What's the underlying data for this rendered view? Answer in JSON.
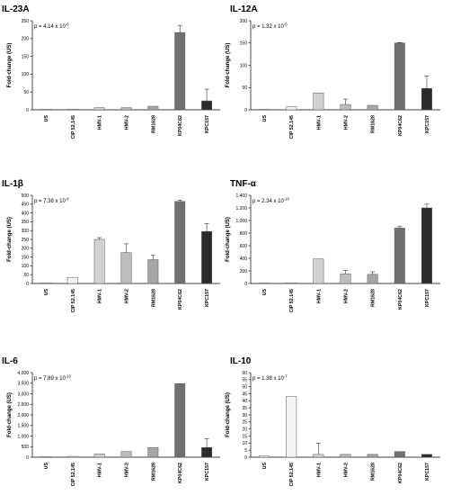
{
  "chart_data": [
    {
      "type": "bar",
      "title": "IL-23A",
      "annotation_base": "p = 4.14 x 10",
      "annotation_exp": "-6",
      "ylabel": "Fold-change (US)",
      "ylim": [
        0,
        250
      ],
      "yticks": [
        0,
        50,
        100,
        150,
        200,
        250
      ],
      "ytick_labels": [
        "0",
        "50",
        "100",
        "150",
        "200",
        "250"
      ],
      "categories": [
        "US",
        "CIP 52.145",
        "HMV-1",
        "HMV-2",
        "RM1628",
        "KP04C62",
        "KPC157"
      ],
      "values": [
        1,
        1,
        6,
        6,
        10,
        217,
        25
      ],
      "errors": [
        0,
        0,
        0,
        0,
        0,
        20,
        33
      ]
    },
    {
      "type": "bar",
      "title": "IL-12A",
      "annotation_base": "p = 1.32 x 10",
      "annotation_exp": "-6",
      "ylabel": "Fold-change (US)",
      "ylim": [
        0,
        200
      ],
      "yticks": [
        0,
        50,
        100,
        150,
        200
      ],
      "ytick_labels": [
        "0",
        "50",
        "100",
        "150",
        "200"
      ],
      "categories": [
        "US",
        "CIP 52.145",
        "HMV-1",
        "HMV-2",
        "RM1628",
        "KP04C62",
        "KPC157"
      ],
      "values": [
        1,
        7,
        38,
        12,
        10,
        150,
        48
      ],
      "errors": [
        0,
        0,
        0,
        12,
        0,
        1,
        28
      ]
    },
    {
      "type": "bar",
      "title": "IL-1β",
      "annotation_base": "p = 7.38 x 10",
      "annotation_exp": "-8",
      "ylabel": "Fold-change (US)",
      "ylim": [
        0,
        500
      ],
      "yticks": [
        0,
        50,
        100,
        150,
        200,
        250,
        300,
        350,
        400,
        450,
        500
      ],
      "ytick_labels": [
        "0",
        "50",
        "100",
        "150",
        "200",
        "250",
        "300",
        "350",
        "400",
        "450",
        "500"
      ],
      "categories": [
        "US",
        "CIP 52.145",
        "HMV-1",
        "HMV-2",
        "RM1628",
        "KP04C62",
        "KPC157"
      ],
      "values": [
        2,
        35,
        250,
        175,
        135,
        465,
        295
      ],
      "errors": [
        0,
        0,
        10,
        50,
        25,
        8,
        45
      ]
    },
    {
      "type": "bar",
      "title": "TNF-α",
      "annotation_base": "p = 2.34 x 10",
      "annotation_exp": "-10",
      "ylabel": "Fold-change (US)",
      "ylim": [
        0,
        1400
      ],
      "yticks": [
        0,
        200,
        400,
        600,
        800,
        1000,
        1200,
        1400
      ],
      "ytick_labels": [
        "0",
        "200",
        "400",
        "600",
        "800",
        "1,000",
        "1,200",
        "1,400"
      ],
      "categories": [
        "US",
        "CIP 52.145",
        "HMV-1",
        "HMV-2",
        "RM1628",
        "KP04C62",
        "KPC157"
      ],
      "values": [
        1,
        3,
        390,
        155,
        145,
        880,
        1200
      ],
      "errors": [
        0,
        0,
        0,
        50,
        40,
        25,
        60
      ]
    },
    {
      "type": "bar",
      "title": "IL-6",
      "annotation_base": "p = 7.89 x 10",
      "annotation_exp": "-10",
      "ylabel": "Fold-change (US)",
      "ylim": [
        0,
        4000
      ],
      "yticks": [
        0,
        500,
        1000,
        1500,
        2000,
        2500,
        3000,
        3500,
        4000
      ],
      "ytick_labels": [
        "0",
        "500",
        "1,000",
        "1,500",
        "2,000",
        "2,500",
        "3,000",
        "3,500",
        "4,000"
      ],
      "categories": [
        "US",
        "CIP 52.145",
        "HMV-1",
        "HMV-2",
        "RM1628",
        "KP04C62",
        "KPC157"
      ],
      "values": [
        10,
        40,
        160,
        270,
        460,
        3480,
        460
      ],
      "errors": [
        0,
        0,
        0,
        0,
        0,
        0,
        420
      ]
    },
    {
      "type": "bar",
      "title": "IL-10",
      "annotation_base": "p = 1.38 x 10",
      "annotation_exp": "-7",
      "ylabel": "Fold-change (US)",
      "ylim": [
        0,
        60
      ],
      "yticks": [
        0,
        5,
        10,
        15,
        20,
        25,
        30,
        35,
        40,
        45,
        50,
        55,
        60
      ],
      "ytick_labels": [
        "0",
        "5",
        "10",
        "15",
        "20",
        "25",
        "30",
        "35",
        "40",
        "45",
        "50",
        "55",
        "60"
      ],
      "categories": [
        "US",
        "CIP 52.145",
        "HMV-1",
        "HMV-2",
        "RM1628",
        "KP04C62",
        "KPC157"
      ],
      "values": [
        1,
        43,
        2,
        2,
        2,
        4,
        2
      ],
      "errors": [
        0,
        0,
        8,
        0,
        0,
        0,
        0
      ]
    }
  ],
  "style": {
    "bar_colors": [
      "#ffffff",
      "#f4f4f4",
      "#d2d2d2",
      "#bdbdbd",
      "#a6a6a6",
      "#707070",
      "#2b2b2b"
    ],
    "bar_edge": "#555555",
    "axis_color": "#000000",
    "error_color": "#333333"
  }
}
